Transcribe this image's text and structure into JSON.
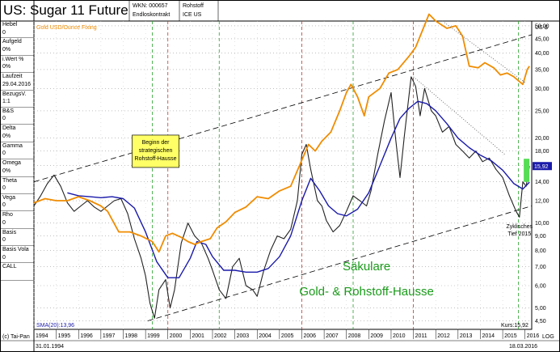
{
  "header": {
    "title": "US: Sugar 11 Future",
    "wkn": "WKN: 000657",
    "contract": "Endloskontrakt",
    "category": "Rohstoff",
    "exchange": "ICE US"
  },
  "sidebar": {
    "items": [
      {
        "label": "Hebel",
        "value": "0"
      },
      {
        "label": "Aufgeld",
        "value": "0%"
      },
      {
        "label": "i.Wert %",
        "value": "0%"
      },
      {
        "label": "Laufzeit",
        "value": "29.04.2016"
      },
      {
        "label": "BezugsV.",
        "value": "1:1"
      },
      {
        "label": "B&S",
        "value": "0"
      },
      {
        "label": "Delta",
        "value": "0%"
      },
      {
        "label": "Gamma",
        "value": "0"
      },
      {
        "label": "Omega",
        "value": "0%"
      },
      {
        "label": "Theta",
        "value": "0"
      },
      {
        "label": "Vega",
        "value": "0"
      },
      {
        "label": "Rho",
        "value": "0"
      },
      {
        "label": "Basis",
        "value": "0"
      },
      {
        "label": "Basis Vola",
        "value": "0"
      },
      {
        "label": "CALL",
        "value": ""
      }
    ]
  },
  "footer": {
    "copyright": "(c) Tai-Pan",
    "start_date": "31.01.1994",
    "end_date": "18.03.2016",
    "log_label": "LOG",
    "sma_label": "SMA(20):13,96",
    "price_label": "Kurs:15,92"
  },
  "chart_data": {
    "type": "line",
    "title": "US: Sugar 11 Future",
    "currency_label": "US-$",
    "legend_gold": "Gold USD/Ounce Fixing",
    "current_value_badge": "15,92",
    "annotation_box": "Beginn der strategischen Rohstoff-Hausse",
    "annotation_low": "Zyklisches Tief 2015",
    "annotation_main_1": "Säkulare",
    "annotation_main_2": "Gold- & Rohstoff-Hausse",
    "y_scale": "log",
    "ylim": [
      4.2,
      52
    ],
    "xlim": [
      1994.0,
      2016.3
    ],
    "y_ticks": [
      {
        "v": 50,
        "label": "50,00"
      },
      {
        "v": 45,
        "label": "45,00"
      },
      {
        "v": 40,
        "label": "40,00"
      },
      {
        "v": 35,
        "label": "35,00"
      },
      {
        "v": 30,
        "label": "30,00"
      },
      {
        "v": 25,
        "label": "25,00"
      },
      {
        "v": 20,
        "label": "20,00"
      },
      {
        "v": 18,
        "label": "18,00"
      },
      {
        "v": 16,
        "label": "16,00"
      },
      {
        "v": 14,
        "label": "14,00"
      },
      {
        "v": 12,
        "label": "12,00"
      },
      {
        "v": 10,
        "label": "10,00"
      },
      {
        "v": 9,
        "label": "9,00"
      },
      {
        "v": 8,
        "label": "8,00"
      },
      {
        "v": 7,
        "label": "7,00"
      },
      {
        "v": 6,
        "label": "6,00"
      },
      {
        "v": 5,
        "label": "5,00"
      },
      {
        "v": 4.5,
        "label": "4,50"
      }
    ],
    "x_ticks": [
      "1994",
      "1995",
      "1996",
      "1997",
      "1998",
      "1999",
      "2000",
      "2001",
      "2002",
      "2003",
      "2004",
      "2005",
      "2006",
      "2007",
      "2008",
      "2009",
      "2010",
      "2011",
      "2012",
      "2013",
      "2014",
      "2015",
      "2016"
    ],
    "red_vlines": [
      2000.0,
      2006.0,
      2011.0
    ],
    "green_vlines": [
      1999.3,
      2002.3,
      2008.3,
      2015.7
    ],
    "series": [
      {
        "name": "Sugar 11 Future",
        "color": "#222222",
        "points": [
          [
            1994.0,
            11.5
          ],
          [
            1994.3,
            12.5
          ],
          [
            1994.6,
            13.8
          ],
          [
            1994.9,
            14.8
          ],
          [
            1995.2,
            13.5
          ],
          [
            1995.5,
            11.8
          ],
          [
            1995.8,
            11.0
          ],
          [
            1996.1,
            11.5
          ],
          [
            1996.4,
            12.0
          ],
          [
            1996.7,
            11.4
          ],
          [
            1997.0,
            11.0
          ],
          [
            1997.3,
            11.5
          ],
          [
            1997.6,
            12.0
          ],
          [
            1997.9,
            12.2
          ],
          [
            1998.2,
            10.8
          ],
          [
            1998.5,
            8.8
          ],
          [
            1998.8,
            7.5
          ],
          [
            1999.0,
            6.5
          ],
          [
            1999.2,
            5.2
          ],
          [
            1999.4,
            4.6
          ],
          [
            1999.6,
            5.8
          ],
          [
            1999.9,
            6.3
          ],
          [
            2000.1,
            5.0
          ],
          [
            2000.3,
            5.8
          ],
          [
            2000.6,
            8.5
          ],
          [
            2000.9,
            10.0
          ],
          [
            2001.2,
            9.0
          ],
          [
            2001.5,
            8.5
          ],
          [
            2001.8,
            7.5
          ],
          [
            2002.0,
            6.8
          ],
          [
            2002.3,
            5.8
          ],
          [
            2002.6,
            5.4
          ],
          [
            2002.9,
            7.0
          ],
          [
            2003.2,
            7.5
          ],
          [
            2003.5,
            6.0
          ],
          [
            2003.8,
            5.8
          ],
          [
            2004.0,
            5.5
          ],
          [
            2004.3,
            6.8
          ],
          [
            2004.6,
            8.0
          ],
          [
            2004.9,
            9.0
          ],
          [
            2005.2,
            8.8
          ],
          [
            2005.5,
            9.5
          ],
          [
            2005.8,
            12.0
          ],
          [
            2006.0,
            17.5
          ],
          [
            2006.2,
            19.0
          ],
          [
            2006.4,
            15.5
          ],
          [
            2006.7,
            12.0
          ],
          [
            2006.9,
            11.5
          ],
          [
            2007.1,
            10.2
          ],
          [
            2007.4,
            9.3
          ],
          [
            2007.7,
            9.8
          ],
          [
            2008.0,
            11.0
          ],
          [
            2008.3,
            12.5
          ],
          [
            2008.6,
            12.0
          ],
          [
            2008.9,
            11.5
          ],
          [
            2009.1,
            13.0
          ],
          [
            2009.4,
            17.5
          ],
          [
            2009.7,
            23.0
          ],
          [
            2010.0,
            29.0
          ],
          [
            2010.2,
            20.0
          ],
          [
            2010.4,
            14.5
          ],
          [
            2010.6,
            20.5
          ],
          [
            2010.9,
            33.0
          ],
          [
            2011.1,
            30.5
          ],
          [
            2011.3,
            24.0
          ],
          [
            2011.5,
            30.0
          ],
          [
            2011.8,
            25.0
          ],
          [
            2012.0,
            24.0
          ],
          [
            2012.3,
            21.0
          ],
          [
            2012.6,
            22.0
          ],
          [
            2012.9,
            19.0
          ],
          [
            2013.2,
            18.0
          ],
          [
            2013.5,
            17.0
          ],
          [
            2013.8,
            18.0
          ],
          [
            2014.1,
            16.5
          ],
          [
            2014.4,
            17.0
          ],
          [
            2014.7,
            15.5
          ],
          [
            2015.0,
            14.5
          ],
          [
            2015.3,
            12.5
          ],
          [
            2015.6,
            11.0
          ],
          [
            2015.75,
            10.5
          ],
          [
            2015.9,
            14.0
          ],
          [
            2016.05,
            13.5
          ],
          [
            2016.2,
            15.92
          ]
        ]
      },
      {
        "name": "SMA(20)",
        "color": "#1a1aaa",
        "points": [
          [
            1995.5,
            12.8
          ],
          [
            1996.0,
            12.5
          ],
          [
            1996.5,
            12.4
          ],
          [
            1997.0,
            12.3
          ],
          [
            1997.5,
            12.4
          ],
          [
            1998.0,
            12.2
          ],
          [
            1998.5,
            11.3
          ],
          [
            1999.0,
            9.3
          ],
          [
            1999.5,
            7.3
          ],
          [
            2000.0,
            6.4
          ],
          [
            2000.5,
            6.4
          ],
          [
            2001.0,
            7.5
          ],
          [
            2001.3,
            8.6
          ],
          [
            2001.7,
            8.4
          ],
          [
            2002.0,
            7.6
          ],
          [
            2002.5,
            6.8
          ],
          [
            2003.0,
            6.8
          ],
          [
            2003.5,
            6.7
          ],
          [
            2004.0,
            6.7
          ],
          [
            2004.5,
            6.9
          ],
          [
            2005.0,
            7.6
          ],
          [
            2005.5,
            9.0
          ],
          [
            2006.0,
            12.0
          ],
          [
            2006.4,
            14.4
          ],
          [
            2006.8,
            13.0
          ],
          [
            2007.2,
            11.5
          ],
          [
            2007.6,
            10.8
          ],
          [
            2008.0,
            10.6
          ],
          [
            2008.5,
            11.2
          ],
          [
            2009.0,
            12.8
          ],
          [
            2009.5,
            16.0
          ],
          [
            2010.0,
            20.0
          ],
          [
            2010.4,
            23.5
          ],
          [
            2010.8,
            25.5
          ],
          [
            2011.2,
            27.0
          ],
          [
            2011.6,
            26.5
          ],
          [
            2012.0,
            25.0
          ],
          [
            2012.5,
            22.5
          ],
          [
            2013.0,
            20.0
          ],
          [
            2013.5,
            18.5
          ],
          [
            2014.0,
            17.4
          ],
          [
            2014.5,
            16.6
          ],
          [
            2015.0,
            15.4
          ],
          [
            2015.5,
            13.8
          ],
          [
            2015.9,
            13.2
          ],
          [
            2016.2,
            13.96
          ]
        ]
      },
      {
        "name": "Gold USD/Ounce Fixing",
        "color": "#f08c00",
        "points": [
          [
            1994.0,
            11.8
          ],
          [
            1994.5,
            12.2
          ],
          [
            1995.0,
            12.0
          ],
          [
            1995.5,
            12.0
          ],
          [
            1996.0,
            12.4
          ],
          [
            1996.5,
            12.0
          ],
          [
            1997.0,
            11.5
          ],
          [
            1997.3,
            11.0
          ],
          [
            1997.8,
            9.3
          ],
          [
            1998.3,
            9.3
          ],
          [
            1998.8,
            9.0
          ],
          [
            1999.3,
            8.6
          ],
          [
            1999.6,
            7.9
          ],
          [
            1999.9,
            9.0
          ],
          [
            2000.2,
            9.2
          ],
          [
            2000.6,
            8.9
          ],
          [
            2000.9,
            8.6
          ],
          [
            2001.2,
            8.4
          ],
          [
            2001.5,
            8.6
          ],
          [
            2001.9,
            8.8
          ],
          [
            2002.2,
            9.6
          ],
          [
            2002.6,
            10.1
          ],
          [
            2003.0,
            10.9
          ],
          [
            2003.5,
            11.4
          ],
          [
            2004.0,
            12.4
          ],
          [
            2004.5,
            12.2
          ],
          [
            2005.0,
            13.0
          ],
          [
            2005.5,
            13.5
          ],
          [
            2005.9,
            16.0
          ],
          [
            2006.3,
            19.0
          ],
          [
            2006.6,
            18.0
          ],
          [
            2006.9,
            19.5
          ],
          [
            2007.3,
            21.0
          ],
          [
            2007.7,
            25.0
          ],
          [
            2008.0,
            29.0
          ],
          [
            2008.2,
            31.0
          ],
          [
            2008.5,
            28.0
          ],
          [
            2008.8,
            24.0
          ],
          [
            2009.0,
            28.0
          ],
          [
            2009.5,
            30.0
          ],
          [
            2009.9,
            34.0
          ],
          [
            2010.3,
            35.0
          ],
          [
            2010.8,
            39.0
          ],
          [
            2011.1,
            42.0
          ],
          [
            2011.4,
            48.0
          ],
          [
            2011.7,
            55.0
          ],
          [
            2012.0,
            52.0
          ],
          [
            2012.5,
            49.0
          ],
          [
            2012.9,
            50.0
          ],
          [
            2013.2,
            46.0
          ],
          [
            2013.5,
            36.0
          ],
          [
            2013.9,
            35.5
          ],
          [
            2014.2,
            37.0
          ],
          [
            2014.6,
            35.5
          ],
          [
            2014.9,
            33.5
          ],
          [
            2015.2,
            34.0
          ],
          [
            2015.5,
            33.0
          ],
          [
            2015.9,
            31.0
          ],
          [
            2016.1,
            35.0
          ],
          [
            2016.2,
            36.0
          ]
        ]
      }
    ],
    "trendlines": [
      {
        "points": [
          [
            1994.0,
            14.0
          ],
          [
            2016.3,
            46.5
          ]
        ]
      },
      {
        "points": [
          [
            1999.1,
            4.5
          ],
          [
            2016.3,
            11.5
          ]
        ]
      }
    ],
    "dotted_lines": [
      {
        "points": [
          [
            2011.0,
            33.0
          ],
          [
            2015.1,
            17.5
          ]
        ]
      },
      {
        "points": [
          [
            2012.3,
            52.0
          ],
          [
            2016.0,
            31.5
          ]
        ]
      }
    ]
  }
}
